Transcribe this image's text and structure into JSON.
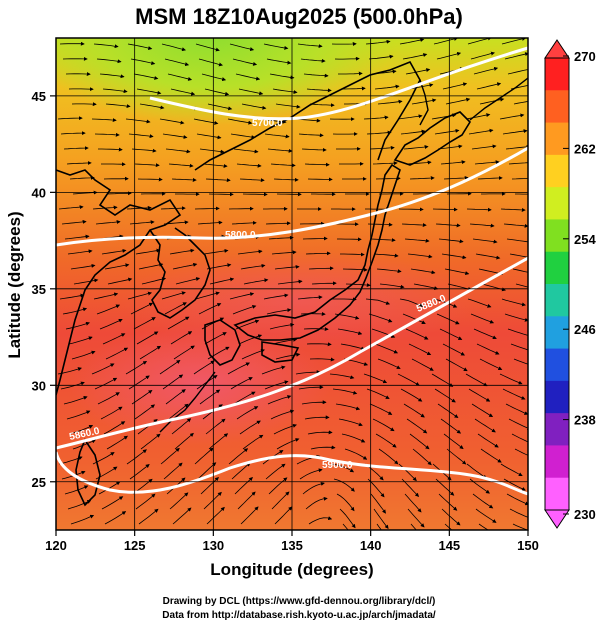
{
  "title": "MSM 18Z10Aug2025 (500.0hPa)",
  "map": {
    "lon_range": [
      120,
      150
    ],
    "lat_range": [
      22.5,
      48
    ],
    "x_ticks": [
      "120",
      "125",
      "130",
      "135",
      "140",
      "145",
      "150"
    ],
    "y_ticks": [
      "25",
      "30",
      "35",
      "40",
      "45"
    ],
    "xlabel": "Longitude (degrees)",
    "ylabel": "Latitude  (degrees)",
    "contours": [
      {
        "label": "5700.0",
        "color": "#ffffff"
      },
      {
        "label": "5800.0",
        "color": "#ffffff"
      },
      {
        "label": "5880.0",
        "color": "#ffffff"
      },
      {
        "label": "5860.0",
        "color": "#ffffff"
      },
      {
        "label": "5900.0",
        "color": "#ffffff"
      }
    ],
    "fill_colors": {
      "cool": "#9be034",
      "mid": "#f5c020",
      "warm": "#f07020",
      "hot": "#e83838",
      "hottest": "#f06070"
    },
    "coastline_color": "#000000",
    "streamline_color": "#000000"
  },
  "colorbar": {
    "ticks": [
      "270",
      "262",
      "254",
      "246",
      "238",
      "230"
    ],
    "colors": [
      "#ff2020",
      "#ff6020",
      "#ff9a20",
      "#ffd020",
      "#d0ee20",
      "#80e020",
      "#20d040",
      "#20c8a0",
      "#20a0e0",
      "#2050e0",
      "#2020c0",
      "#8020c0",
      "#d020d0",
      "#ff60ff"
    ]
  },
  "credits": {
    "line1": "Drawing by DCL (https://www.gfd-dennou.org/library/dcl/)",
    "line2": "Data from http://database.rish.kyoto-u.ac.jp/arch/jmadata/"
  }
}
